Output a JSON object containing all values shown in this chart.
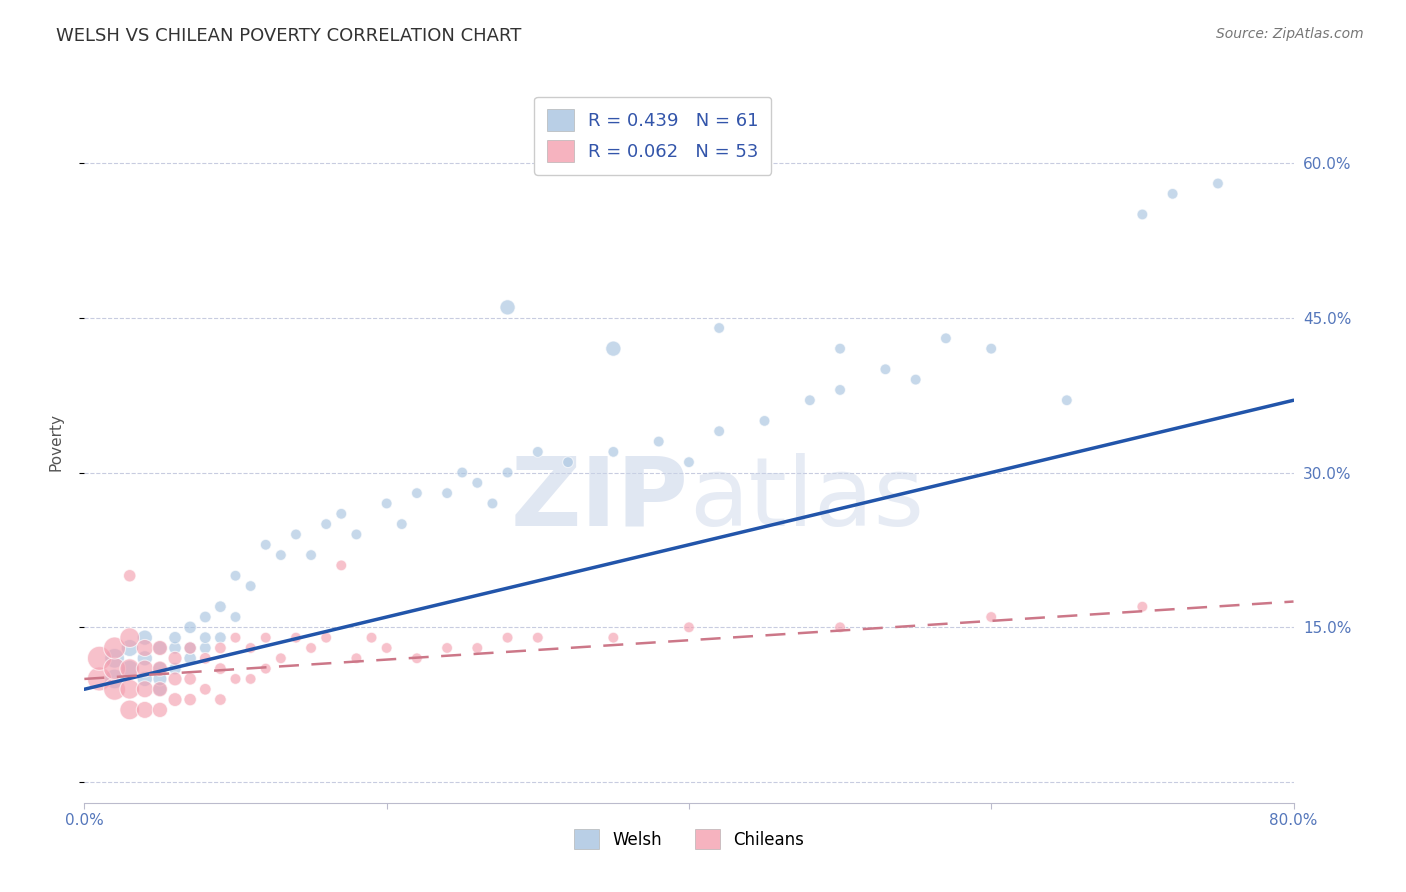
{
  "title": "WELSH VS CHILEAN POVERTY CORRELATION CHART",
  "source": "Source: ZipAtlas.com",
  "ylabel": "Poverty",
  "xlim": [
    0.0,
    0.8
  ],
  "ylim": [
    -0.02,
    0.68
  ],
  "yticks": [
    0.0,
    0.15,
    0.3,
    0.45,
    0.6
  ],
  "ytick_labels": [
    "",
    "15.0%",
    "30.0%",
    "45.0%",
    "60.0%"
  ],
  "xticks": [
    0.0,
    0.2,
    0.4,
    0.6,
    0.8
  ],
  "xtick_labels": [
    "0.0%",
    "",
    "",
    "",
    "80.0%"
  ],
  "welsh_R": 0.439,
  "welsh_N": 61,
  "chilean_R": 0.062,
  "chilean_N": 53,
  "welsh_color": "#a8c4e0",
  "chilean_color": "#f4a0b0",
  "welsh_line_color": "#2255aa",
  "chilean_line_color": "#cc7788",
  "background_color": "#ffffff",
  "grid_color": "#c8cce0",
  "title_color": "#333333",
  "legend_welsh_label": "Welsh",
  "legend_chilean_label": "Chileans",
  "welsh_x": [
    0.02,
    0.02,
    0.03,
    0.03,
    0.04,
    0.04,
    0.04,
    0.05,
    0.05,
    0.05,
    0.05,
    0.06,
    0.06,
    0.06,
    0.07,
    0.07,
    0.07,
    0.08,
    0.08,
    0.08,
    0.09,
    0.09,
    0.1,
    0.1,
    0.11,
    0.12,
    0.13,
    0.14,
    0.15,
    0.16,
    0.17,
    0.18,
    0.2,
    0.21,
    0.22,
    0.24,
    0.25,
    0.26,
    0.27,
    0.28,
    0.3,
    0.32,
    0.35,
    0.38,
    0.4,
    0.42,
    0.45,
    0.48,
    0.5,
    0.53,
    0.55,
    0.57,
    0.6,
    0.35,
    0.42,
    0.5,
    0.65,
    0.7,
    0.72,
    0.75,
    0.28
  ],
  "welsh_y": [
    0.1,
    0.12,
    0.11,
    0.13,
    0.1,
    0.12,
    0.14,
    0.09,
    0.11,
    0.13,
    0.1,
    0.11,
    0.13,
    0.14,
    0.12,
    0.15,
    0.13,
    0.13,
    0.16,
    0.14,
    0.14,
    0.17,
    0.16,
    0.2,
    0.19,
    0.23,
    0.22,
    0.24,
    0.22,
    0.25,
    0.26,
    0.24,
    0.27,
    0.25,
    0.28,
    0.28,
    0.3,
    0.29,
    0.27,
    0.3,
    0.32,
    0.31,
    0.32,
    0.33,
    0.31,
    0.34,
    0.35,
    0.37,
    0.38,
    0.4,
    0.39,
    0.43,
    0.42,
    0.42,
    0.44,
    0.42,
    0.37,
    0.55,
    0.57,
    0.58,
    0.46
  ],
  "welsh_sizes": [
    200,
    200,
    150,
    150,
    120,
    120,
    120,
    100,
    100,
    100,
    100,
    80,
    80,
    80,
    80,
    80,
    80,
    70,
    70,
    70,
    70,
    70,
    60,
    60,
    60,
    60,
    60,
    60,
    60,
    60,
    60,
    60,
    60,
    60,
    60,
    60,
    60,
    60,
    60,
    60,
    60,
    60,
    60,
    60,
    60,
    60,
    60,
    60,
    60,
    60,
    60,
    60,
    60,
    120,
    60,
    60,
    60,
    60,
    60,
    60,
    120
  ],
  "chilean_x": [
    0.01,
    0.01,
    0.02,
    0.02,
    0.02,
    0.03,
    0.03,
    0.03,
    0.03,
    0.04,
    0.04,
    0.04,
    0.04,
    0.05,
    0.05,
    0.05,
    0.05,
    0.06,
    0.06,
    0.06,
    0.07,
    0.07,
    0.07,
    0.08,
    0.08,
    0.09,
    0.09,
    0.09,
    0.1,
    0.1,
    0.11,
    0.11,
    0.12,
    0.12,
    0.13,
    0.14,
    0.15,
    0.16,
    0.17,
    0.18,
    0.19,
    0.2,
    0.22,
    0.24,
    0.26,
    0.28,
    0.3,
    0.35,
    0.4,
    0.5,
    0.6,
    0.7,
    0.03
  ],
  "chilean_y": [
    0.1,
    0.12,
    0.09,
    0.11,
    0.13,
    0.07,
    0.09,
    0.11,
    0.14,
    0.07,
    0.09,
    0.11,
    0.13,
    0.07,
    0.09,
    0.11,
    0.13,
    0.08,
    0.1,
    0.12,
    0.08,
    0.1,
    0.13,
    0.09,
    0.12,
    0.08,
    0.11,
    0.13,
    0.1,
    0.14,
    0.1,
    0.13,
    0.11,
    0.14,
    0.12,
    0.14,
    0.13,
    0.14,
    0.21,
    0.12,
    0.14,
    0.13,
    0.12,
    0.13,
    0.13,
    0.14,
    0.14,
    0.14,
    0.15,
    0.15,
    0.16,
    0.17,
    0.2
  ],
  "chilean_sizes": [
    300,
    300,
    250,
    250,
    250,
    200,
    200,
    200,
    200,
    150,
    150,
    150,
    150,
    120,
    120,
    120,
    120,
    100,
    100,
    100,
    80,
    80,
    80,
    70,
    70,
    70,
    70,
    70,
    60,
    60,
    60,
    60,
    60,
    60,
    60,
    60,
    60,
    60,
    60,
    60,
    60,
    60,
    60,
    60,
    60,
    60,
    60,
    60,
    60,
    60,
    60,
    60,
    80
  ],
  "welsh_line_x0": 0.0,
  "welsh_line_y0": 0.09,
  "welsh_line_x1": 0.8,
  "welsh_line_y1": 0.37,
  "chilean_line_x0": 0.0,
  "chilean_line_y0": 0.1,
  "chilean_line_x1": 0.8,
  "chilean_line_y1": 0.175
}
